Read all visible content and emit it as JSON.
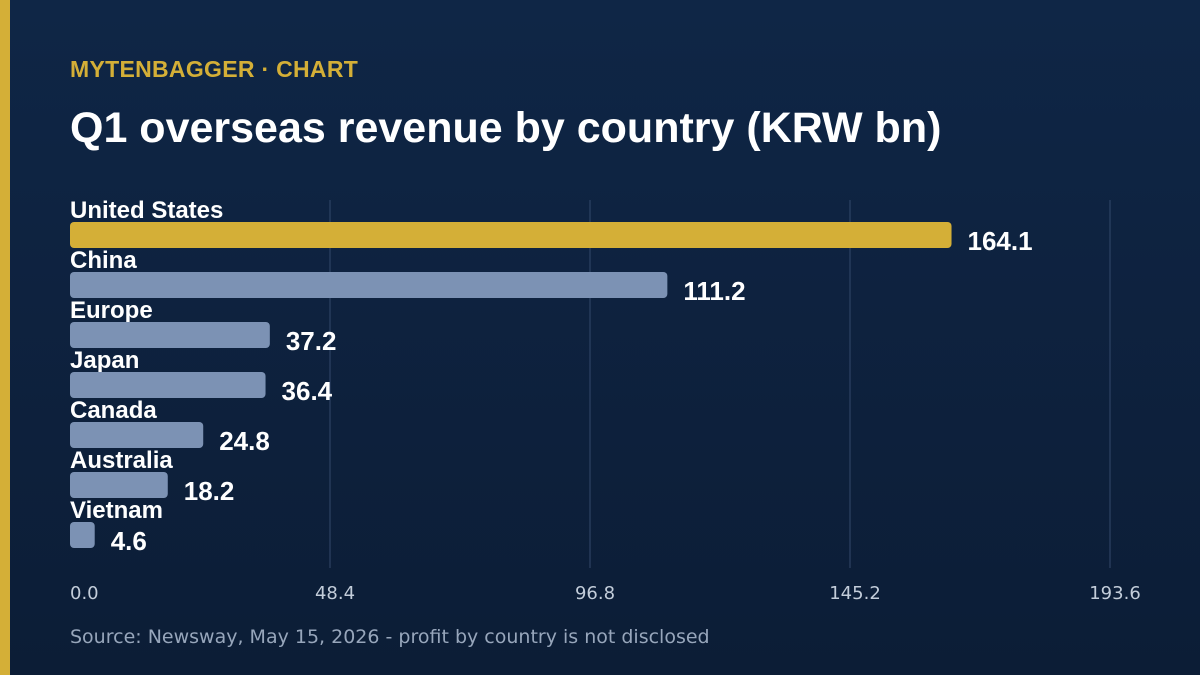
{
  "header": {
    "kicker": "MYTENBAGGER · CHART",
    "title": "Q1 overseas revenue by country (KRW bn)"
  },
  "colors": {
    "background": "#0d213d",
    "accent": "#d4af37",
    "bar_default": "#7c92b4",
    "bar_highlight": "#d4af37",
    "gridline": "#33486a",
    "text_primary": "#ffffff",
    "tick_label": "#c3cdda",
    "source_text": "#97a6bb"
  },
  "chart_data": {
    "type": "bar",
    "orientation": "horizontal",
    "title": "Q1 overseas revenue by country (KRW bn)",
    "categories": [
      "United States",
      "China",
      "Europe",
      "Japan",
      "Canada",
      "Australia",
      "Vietnam"
    ],
    "values": [
      164.1,
      111.2,
      37.2,
      36.4,
      24.8,
      18.2,
      4.6
    ],
    "value_labels": [
      "164.1",
      "111.2",
      "37.2",
      "36.4",
      "24.8",
      "18.2",
      "4.6"
    ],
    "highlight_index": 0,
    "xlim": [
      0,
      193.6
    ],
    "x_ticks": [
      0,
      48.4,
      96.8,
      145.2,
      193.6
    ],
    "x_tick_labels": [
      "0.0",
      "48.4",
      "96.8",
      "145.2",
      "193.6"
    ],
    "grid": true,
    "legend": "none"
  },
  "footer": {
    "source": "Source: Newsway, May 15, 2026 - profit by country is not disclosed"
  }
}
